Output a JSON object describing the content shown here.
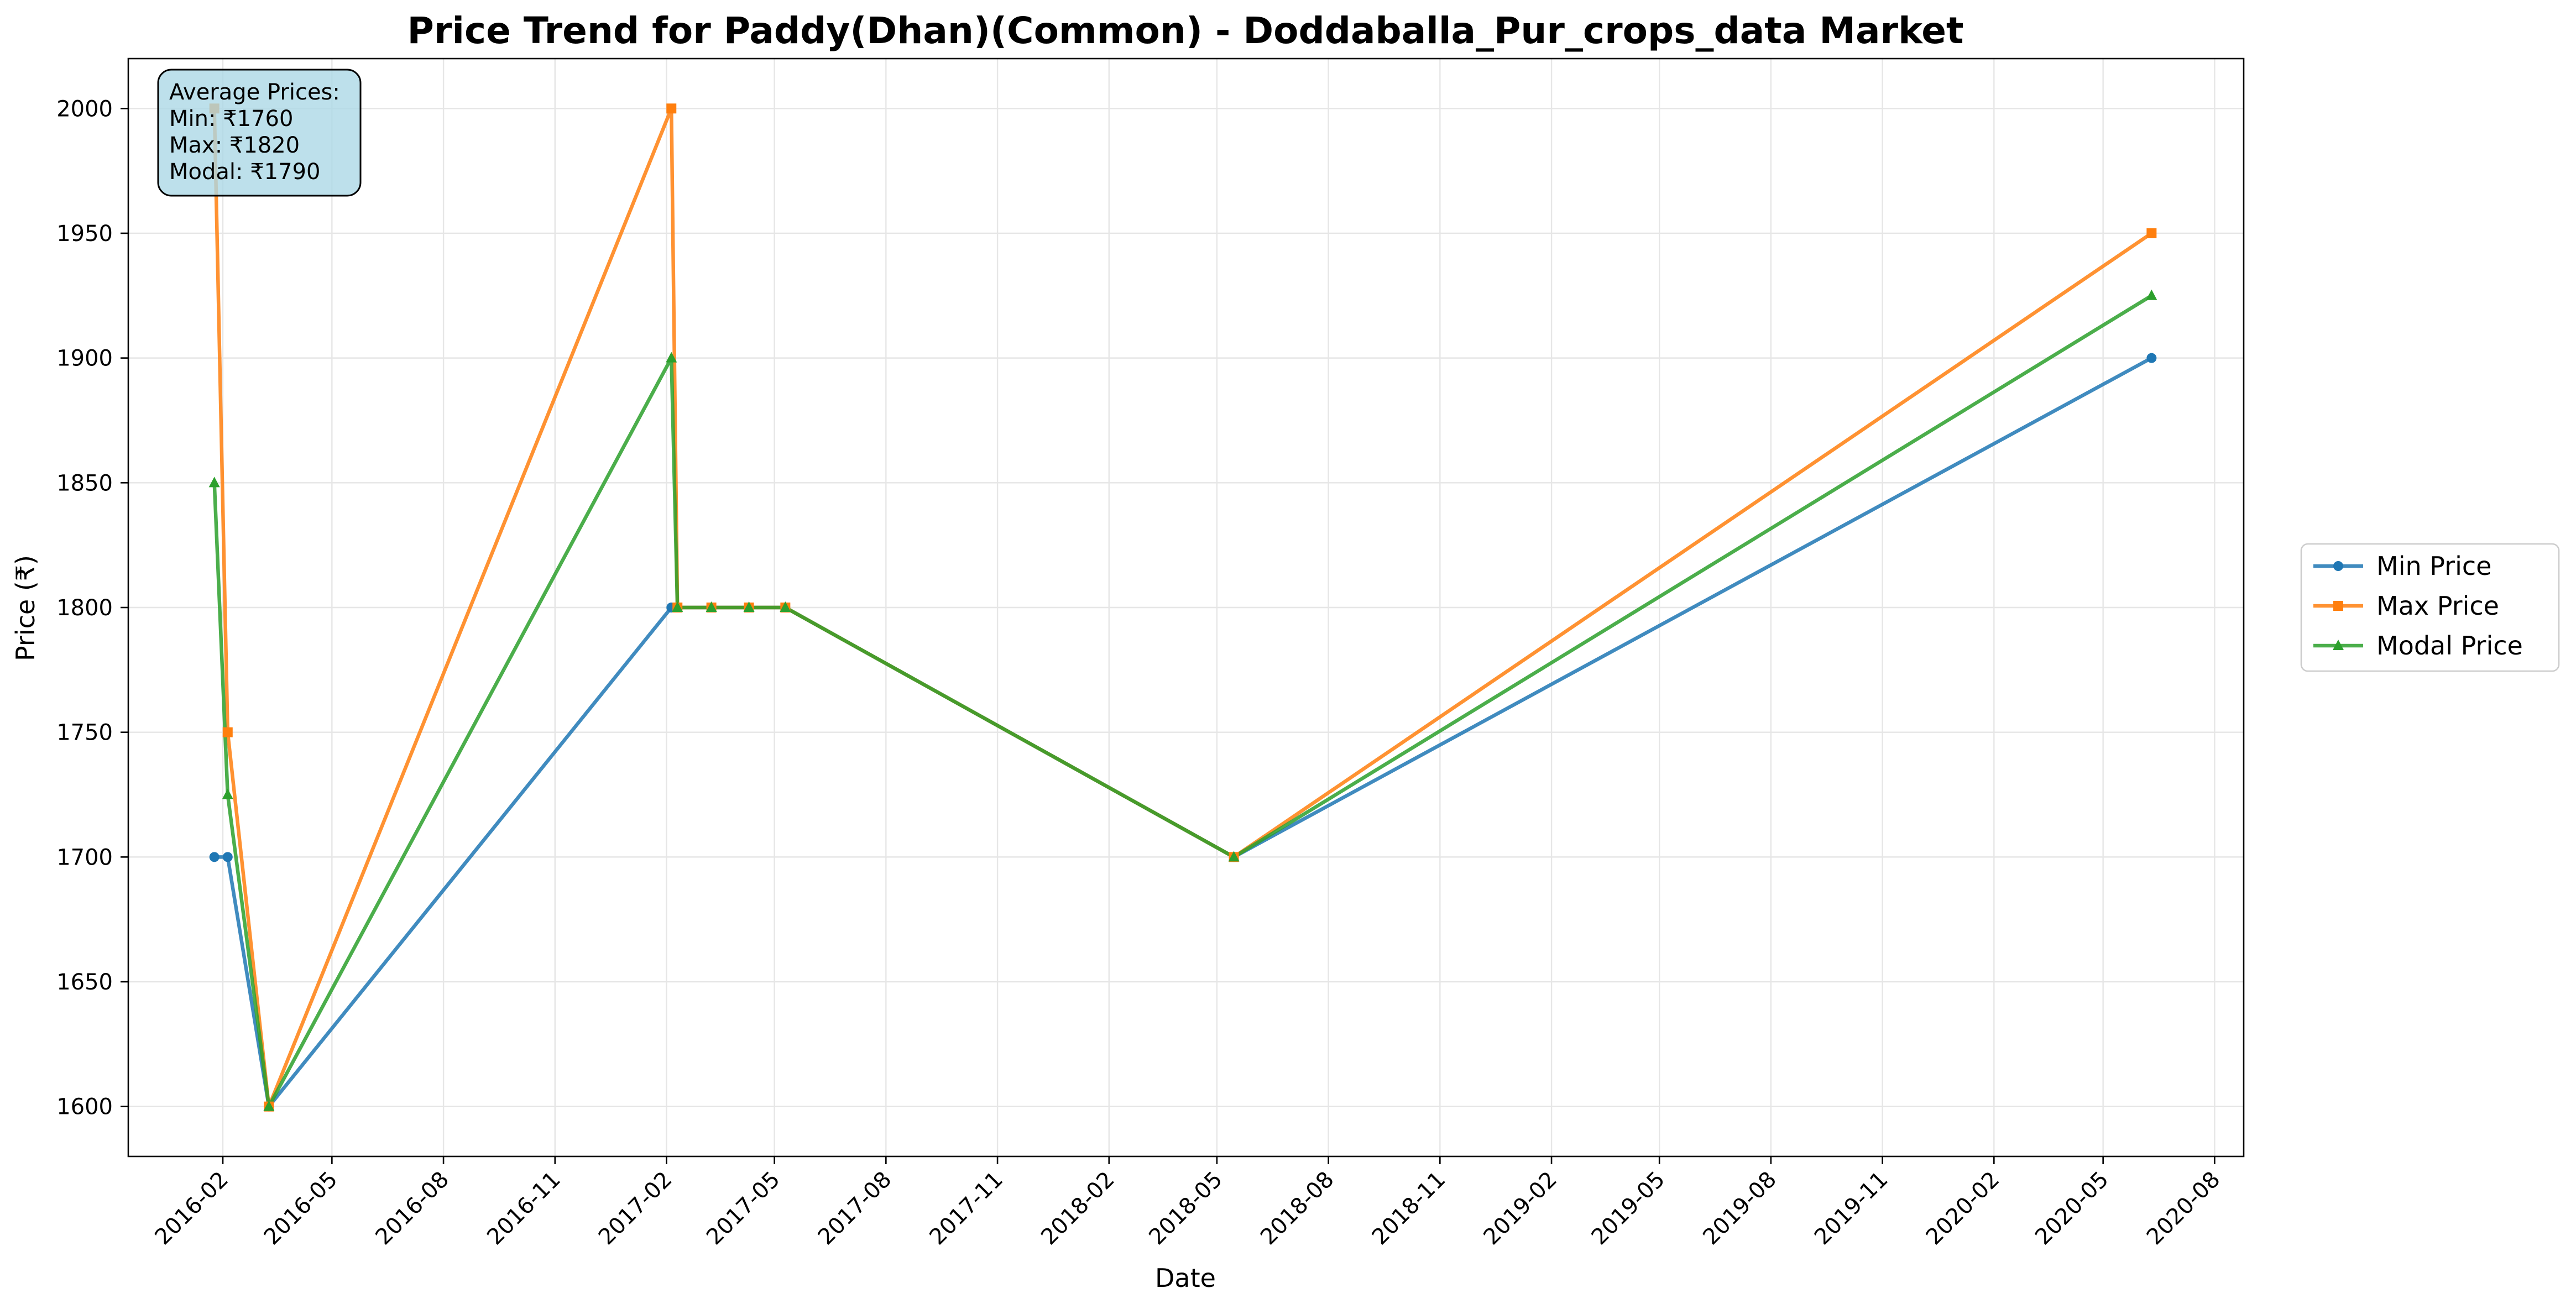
{
  "chart_data": {
    "type": "line",
    "title": "Price Trend for Paddy(Dhan)(Common) - Doddaballa_Pur_crops_data Market",
    "xlabel": "Date",
    "ylabel": "Price (₹)",
    "x": [
      "2016-01-25",
      "2016-02-05",
      "2016-03-10",
      "2017-02-05",
      "2017-02-10",
      "2017-03-10",
      "2017-04-10",
      "2017-05-10",
      "2018-05-15",
      "2020-06-10"
    ],
    "series": [
      {
        "name": "Min Price",
        "color": "#1f77b4",
        "marker": "circle",
        "values": [
          1700,
          1700,
          1600,
          1800,
          1800,
          1800,
          1800,
          1800,
          1700,
          1900
        ]
      },
      {
        "name": "Max Price",
        "color": "#ff7f0e",
        "marker": "square",
        "values": [
          2000,
          1750,
          1600,
          2000,
          1800,
          1800,
          1800,
          1800,
          1700,
          1950
        ]
      },
      {
        "name": "Modal Price",
        "color": "#2ca02c",
        "marker": "triangle",
        "values": [
          1850,
          1725,
          1600,
          1900,
          1800,
          1800,
          1800,
          1800,
          1700,
          1925
        ]
      }
    ],
    "xlim": [
      "2015-11-15",
      "2020-08-25"
    ],
    "ylim": [
      1580,
      2020
    ],
    "x_ticks": [
      "2016-02",
      "2016-05",
      "2016-08",
      "2016-11",
      "2017-02",
      "2017-05",
      "2017-08",
      "2017-11",
      "2018-02",
      "2018-05",
      "2018-08",
      "2018-11",
      "2019-02",
      "2019-05",
      "2019-08",
      "2019-11",
      "2020-02",
      "2020-05",
      "2020-08"
    ],
    "y_ticks": [
      1600,
      1650,
      1700,
      1750,
      1800,
      1850,
      1900,
      1950,
      2000
    ],
    "grid": true,
    "legend_position": "right-outside",
    "stats_box": {
      "lines": [
        "Average Prices:",
        "Min: ₹1760",
        "Max: ₹1820",
        "Modal: ₹1790"
      ],
      "background": "#add8e6"
    }
  }
}
